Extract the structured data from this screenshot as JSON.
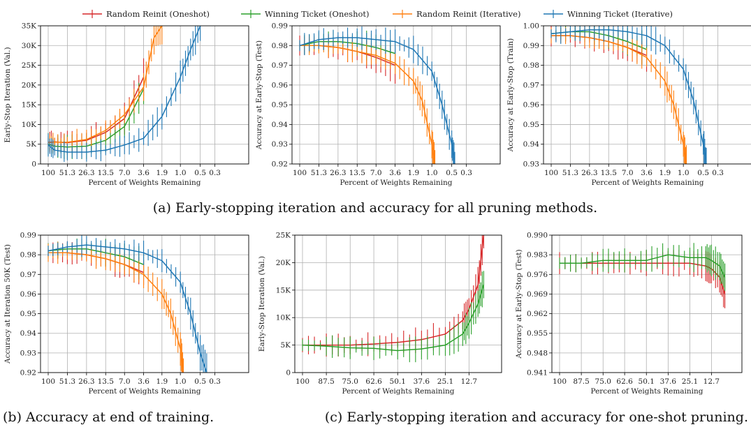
{
  "legend": {
    "placement": "top",
    "items": [
      {
        "label": "Random Reinit (Oneshot)",
        "color": "#d62728"
      },
      {
        "label": "Winning Ticket (Oneshot)",
        "color": "#2ca02c"
      },
      {
        "label": "Random Reinit (Iterative)",
        "color": "#ff7f0e"
      },
      {
        "label": "Winning Ticket (Iterative)",
        "color": "#1f77b4"
      }
    ]
  },
  "captions": {
    "a": "(a) Early-stopping iteration and accuracy for all pruning methods.",
    "b": "(b) Accuracy at end of training.",
    "c": "(c) Early-stopping iteration and accuracy for one-shot pruning."
  },
  "chart_data": [
    {
      "type": "line",
      "xlabel": "Percent of Weights Remaining",
      "ylabel": "Early-Stop Iteration (Val.)",
      "xticks": [
        "100",
        "51.3",
        "26.3",
        "13.5",
        "7.0",
        "3.6",
        "1.9",
        "1.0",
        "0.5",
        "0.3"
      ],
      "yticks": [
        "0",
        "5K",
        "10K",
        "15K",
        "20K",
        "25K",
        "30K",
        "35K"
      ],
      "ylim": [
        0,
        35000
      ],
      "grid": true,
      "series": [
        {
          "name": "Random Reinit (Oneshot)",
          "color": "#d62728",
          "points": [
            [
              100,
              5500
            ],
            [
              80,
              5600
            ],
            [
              51.3,
              5400
            ],
            [
              26.3,
              6000
            ],
            [
              13.5,
              8000
            ],
            [
              7.0,
              11500
            ],
            [
              3.6,
              22000
            ]
          ]
        },
        {
          "name": "Winning Ticket (Oneshot)",
          "color": "#2ca02c",
          "points": [
            [
              100,
              5000
            ],
            [
              80,
              4500
            ],
            [
              51.3,
              4300
            ],
            [
              26.3,
              4500
            ],
            [
              13.5,
              6000
            ],
            [
              7.0,
              9500
            ],
            [
              3.6,
              19000
            ]
          ]
        },
        {
          "name": "Random Reinit (Iterative)",
          "color": "#ff7f0e",
          "points": [
            [
              100,
              5400
            ],
            [
              80,
              5500
            ],
            [
              51.3,
              5500
            ],
            [
              26.3,
              6200
            ],
            [
              13.5,
              8500
            ],
            [
              7.0,
              12500
            ],
            [
              3.6,
              19500
            ],
            [
              2.5,
              32000
            ],
            [
              1.9,
              35000
            ]
          ]
        },
        {
          "name": "Winning Ticket (Iterative)",
          "color": "#1f77b4",
          "points": [
            [
              100,
              4800
            ],
            [
              80,
              3500
            ],
            [
              51.3,
              3000
            ],
            [
              26.3,
              3000
            ],
            [
              13.5,
              3500
            ],
            [
              7.0,
              4800
            ],
            [
              3.6,
              6500
            ],
            [
              1.9,
              12000
            ],
            [
              1.0,
              22000
            ],
            [
              0.7,
              29000
            ],
            [
              0.5,
              35000
            ]
          ]
        }
      ]
    },
    {
      "type": "line",
      "xlabel": "Percent of Weights Remaining",
      "ylabel": "Accuracy at Early-Stop (Test)",
      "xticks": [
        "100",
        "51.3",
        "26.3",
        "13.5",
        "7.0",
        "3.6",
        "1.9",
        "1.0",
        "0.5",
        "0.3"
      ],
      "yticks": [
        "0.92",
        "0.93",
        "0.94",
        "0.95",
        "0.96",
        "0.97",
        "0.98",
        "0.99"
      ],
      "ylim": [
        0.92,
        0.99
      ],
      "grid": true,
      "series": [
        {
          "name": "Random Reinit (Oneshot)",
          "color": "#d62728",
          "points": [
            [
              100,
              0.98
            ],
            [
              51.3,
              0.98
            ],
            [
              26.3,
              0.979
            ],
            [
              13.5,
              0.977
            ],
            [
              7.0,
              0.974
            ],
            [
              3.6,
              0.97
            ]
          ]
        },
        {
          "name": "Winning Ticket (Oneshot)",
          "color": "#2ca02c",
          "points": [
            [
              100,
              0.98
            ],
            [
              51.3,
              0.982
            ],
            [
              26.3,
              0.982
            ],
            [
              13.5,
              0.981
            ],
            [
              7.0,
              0.979
            ],
            [
              3.6,
              0.976
            ]
          ]
        },
        {
          "name": "Random Reinit (Iterative)",
          "color": "#ff7f0e",
          "points": [
            [
              100,
              0.98
            ],
            [
              51.3,
              0.98
            ],
            [
              26.3,
              0.979
            ],
            [
              13.5,
              0.977
            ],
            [
              7.0,
              0.975
            ],
            [
              3.6,
              0.971
            ],
            [
              1.9,
              0.962
            ],
            [
              1.4,
              0.952
            ],
            [
              1.0,
              0.93
            ],
            [
              0.9,
              0.92
            ]
          ]
        },
        {
          "name": "Winning Ticket (Iterative)",
          "color": "#1f77b4",
          "points": [
            [
              100,
              0.98
            ],
            [
              51.3,
              0.983
            ],
            [
              26.3,
              0.984
            ],
            [
              13.5,
              0.984
            ],
            [
              7.0,
              0.983
            ],
            [
              3.6,
              0.982
            ],
            [
              1.9,
              0.978
            ],
            [
              1.0,
              0.967
            ],
            [
              0.7,
              0.95
            ],
            [
              0.5,
              0.93
            ],
            [
              0.45,
              0.92
            ]
          ]
        }
      ]
    },
    {
      "type": "line",
      "xlabel": "Percent of Weights Remaining",
      "ylabel": "Accuracy at Early-Stop (Train)",
      "xticks": [
        "100",
        "51.3",
        "26.3",
        "13.5",
        "7.0",
        "3.6",
        "1.9",
        "1.0",
        "0.5",
        "0.3"
      ],
      "yticks": [
        "0.93",
        "0.94",
        "0.95",
        "0.96",
        "0.97",
        "0.98",
        "0.99",
        "1.00"
      ],
      "ylim": [
        0.93,
        1.0
      ],
      "grid": true,
      "series": [
        {
          "name": "Random Reinit (Oneshot)",
          "color": "#d62728",
          "points": [
            [
              100,
              0.995
            ],
            [
              51.3,
              0.995
            ],
            [
              26.3,
              0.994
            ],
            [
              13.5,
              0.992
            ],
            [
              7.0,
              0.989
            ],
            [
              3.6,
              0.985
            ]
          ]
        },
        {
          "name": "Winning Ticket (Oneshot)",
          "color": "#2ca02c",
          "points": [
            [
              100,
              0.996
            ],
            [
              51.3,
              0.997
            ],
            [
              26.3,
              0.997
            ],
            [
              13.5,
              0.995
            ],
            [
              7.0,
              0.992
            ],
            [
              3.6,
              0.988
            ]
          ]
        },
        {
          "name": "Random Reinit (Iterative)",
          "color": "#ff7f0e",
          "points": [
            [
              100,
              0.995
            ],
            [
              51.3,
              0.995
            ],
            [
              26.3,
              0.994
            ],
            [
              13.5,
              0.992
            ],
            [
              7.0,
              0.989
            ],
            [
              3.6,
              0.984
            ],
            [
              1.9,
              0.972
            ],
            [
              1.4,
              0.96
            ],
            [
              1.0,
              0.94
            ],
            [
              0.9,
              0.93
            ]
          ]
        },
        {
          "name": "Winning Ticket (Iterative)",
          "color": "#1f77b4",
          "points": [
            [
              100,
              0.996
            ],
            [
              51.3,
              0.997
            ],
            [
              26.3,
              0.998
            ],
            [
              13.5,
              0.998
            ],
            [
              7.0,
              0.997
            ],
            [
              3.6,
              0.995
            ],
            [
              1.9,
              0.99
            ],
            [
              1.0,
              0.978
            ],
            [
              0.7,
              0.962
            ],
            [
              0.5,
              0.94
            ],
            [
              0.45,
              0.93
            ]
          ]
        }
      ]
    },
    {
      "type": "line",
      "xlabel": "Percent of Weights Remaining",
      "ylabel": "Accuracy at Iteration 50K (Test)",
      "xticks": [
        "100",
        "51.3",
        "26.3",
        "13.5",
        "7.0",
        "3.6",
        "1.9",
        "1.0",
        "0.5",
        "0.3"
      ],
      "yticks": [
        "0.92",
        "0.93",
        "0.94",
        "0.95",
        "0.96",
        "0.97",
        "0.98",
        "0.99"
      ],
      "ylim": [
        0.92,
        0.99
      ],
      "grid": true,
      "series": [
        {
          "name": "Random Reinit (Oneshot)",
          "color": "#d62728",
          "points": [
            [
              100,
              0.981
            ],
            [
              51.3,
              0.981
            ],
            [
              26.3,
              0.98
            ],
            [
              13.5,
              0.978
            ],
            [
              7.0,
              0.975
            ],
            [
              3.6,
              0.971
            ]
          ]
        },
        {
          "name": "Winning Ticket (Oneshot)",
          "color": "#2ca02c",
          "points": [
            [
              100,
              0.982
            ],
            [
              51.3,
              0.983
            ],
            [
              26.3,
              0.983
            ],
            [
              13.5,
              0.981
            ],
            [
              7.0,
              0.979
            ],
            [
              3.6,
              0.975
            ]
          ]
        },
        {
          "name": "Random Reinit (Iterative)",
          "color": "#ff7f0e",
          "points": [
            [
              100,
              0.981
            ],
            [
              51.3,
              0.981
            ],
            [
              26.3,
              0.98
            ],
            [
              13.5,
              0.978
            ],
            [
              7.0,
              0.975
            ],
            [
              3.6,
              0.97
            ],
            [
              1.9,
              0.96
            ],
            [
              1.4,
              0.95
            ],
            [
              1.0,
              0.932
            ],
            [
              0.9,
              0.92
            ]
          ]
        },
        {
          "name": "Winning Ticket (Iterative)",
          "color": "#1f77b4",
          "points": [
            [
              100,
              0.982
            ],
            [
              51.3,
              0.984
            ],
            [
              26.3,
              0.985
            ],
            [
              13.5,
              0.984
            ],
            [
              7.0,
              0.983
            ],
            [
              3.6,
              0.981
            ],
            [
              1.9,
              0.977
            ],
            [
              1.0,
              0.966
            ],
            [
              0.7,
              0.95
            ],
            [
              0.5,
              0.93
            ],
            [
              0.4,
              0.92
            ]
          ]
        }
      ]
    },
    {
      "type": "line",
      "xlabel": "Percent of Weights Remaining",
      "ylabel": "Early-Stop Iteration (Val.)",
      "xticks": [
        "100",
        "87.5",
        "75.0",
        "62.6",
        "50.1",
        "37.6",
        "25.1",
        "12.7"
      ],
      "yticks": [
        "0",
        "5K",
        "10K",
        "15K",
        "20K",
        "25K"
      ],
      "ylim": [
        0,
        25000
      ],
      "grid": true,
      "series": [
        {
          "name": "Random Reinit (Oneshot)",
          "color": "#d62728",
          "points": [
            [
              100,
              5000
            ],
            [
              87.5,
              5000
            ],
            [
              75.0,
              5000
            ],
            [
              62.6,
              5200
            ],
            [
              50.1,
              5500
            ],
            [
              37.6,
              6000
            ],
            [
              25.1,
              7000
            ],
            [
              16.0,
              9500
            ],
            [
              12.7,
              11500
            ],
            [
              8.0,
              16000
            ],
            [
              5.0,
              25000
            ]
          ]
        },
        {
          "name": "Winning Ticket (Oneshot)",
          "color": "#2ca02c",
          "points": [
            [
              100,
              5000
            ],
            [
              87.5,
              4800
            ],
            [
              75.0,
              4500
            ],
            [
              62.6,
              4400
            ],
            [
              50.1,
              4000
            ],
            [
              37.6,
              4300
            ],
            [
              25.1,
              5000
            ],
            [
              16.0,
              7000
            ],
            [
              12.7,
              9000
            ],
            [
              8.0,
              12500
            ],
            [
              5.0,
              16000
            ]
          ]
        }
      ]
    },
    {
      "type": "line",
      "xlabel": "Percent of Weights Remaining",
      "ylabel": "Accuracy at Early-Stop (Test)",
      "xticks": [
        "100",
        "87.5",
        "75.0",
        "62.6",
        "50.1",
        "37.6",
        "25.1",
        "12.7"
      ],
      "yticks": [
        "0.941",
        "0.948",
        "0.955",
        "0.962",
        "0.969",
        "0.976",
        "0.983",
        "0.990"
      ],
      "ylim": [
        0.941,
        0.99
      ],
      "grid": true,
      "series": [
        {
          "name": "Random Reinit (Oneshot)",
          "color": "#d62728",
          "points": [
            [
              100,
              0.98
            ],
            [
              87.5,
              0.98
            ],
            [
              75.0,
              0.98
            ],
            [
              62.6,
              0.98
            ],
            [
              50.1,
              0.98
            ],
            [
              37.6,
              0.98
            ],
            [
              25.1,
              0.98
            ],
            [
              16.0,
              0.979
            ],
            [
              12.7,
              0.978
            ],
            [
              8.0,
              0.975
            ],
            [
              5.0,
              0.969
            ]
          ]
        },
        {
          "name": "Winning Ticket (Oneshot)",
          "color": "#2ca02c",
          "points": [
            [
              100,
              0.98
            ],
            [
              87.5,
              0.98
            ],
            [
              75.0,
              0.981
            ],
            [
              62.6,
              0.981
            ],
            [
              50.1,
              0.981
            ],
            [
              37.6,
              0.983
            ],
            [
              25.1,
              0.982
            ],
            [
              16.0,
              0.982
            ],
            [
              12.7,
              0.981
            ],
            [
              8.0,
              0.979
            ],
            [
              5.0,
              0.975
            ]
          ]
        }
      ]
    }
  ]
}
